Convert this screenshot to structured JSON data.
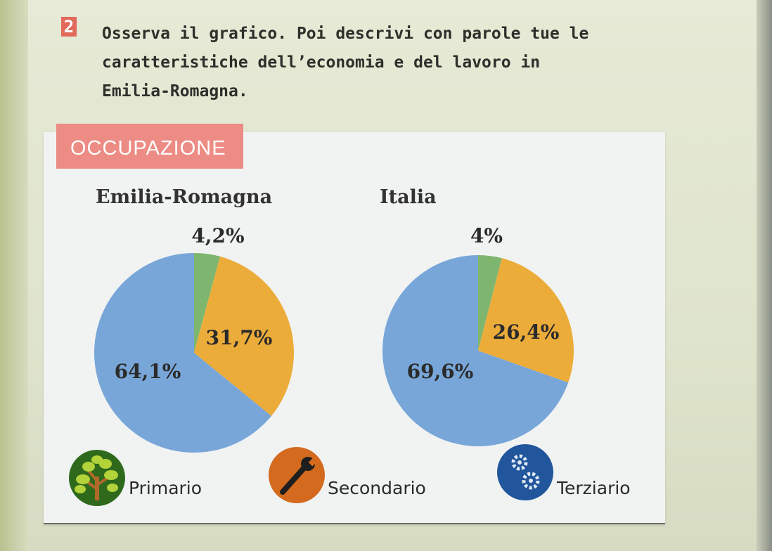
{
  "exercise": {
    "number": "2",
    "lines": [
      "Osserva il grafico. Poi descrivi con parole tue le",
      "caratteristiche dell’economia e del lavoro in",
      "Emilia-Romagna."
    ]
  },
  "section_tag": "OCCUPAZIONE",
  "colors": {
    "primario": "#7fb66f",
    "secondario": "#ecac3a",
    "terziario": "#78a6d8",
    "tag_bg": "#ec8c84",
    "exercise_badge": "#e26a5a"
  },
  "chart_data": [
    {
      "type": "pie",
      "title": "Emilia-Romagna",
      "categories": [
        "Primario",
        "Secondario",
        "Terziario"
      ],
      "values": [
        4.2,
        31.7,
        64.1
      ],
      "value_labels": [
        "4,2%",
        "31,7%",
        "64,1%"
      ],
      "start": "top",
      "direction": "clockwise"
    },
    {
      "type": "pie",
      "title": "Italia",
      "categories": [
        "Primario",
        "Secondario",
        "Terziario"
      ],
      "values": [
        4.0,
        26.4,
        69.6
      ],
      "value_labels": [
        "4%",
        "26,4%",
        "69,6%"
      ],
      "start": "top",
      "direction": "clockwise"
    }
  ],
  "legend": [
    {
      "label": "Primario",
      "icon": "tree-icon",
      "color": "#2f6a1c"
    },
    {
      "label": "Secondario",
      "icon": "wrench-icon",
      "color": "#d36a1d"
    },
    {
      "label": "Terziario",
      "icon": "gears-icon",
      "color": "#21569c"
    }
  ]
}
